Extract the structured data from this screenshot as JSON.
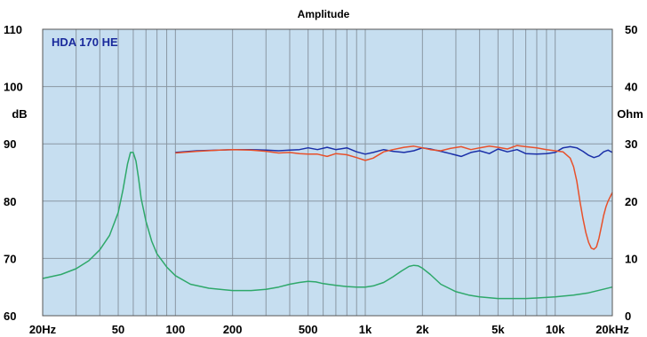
{
  "chart_data": {
    "type": "line",
    "title": "Amplitude",
    "annotation": "HDA 170 HE",
    "y_left_label": "dB",
    "y_right_label": "Ohm",
    "x_scale": "log",
    "xlim": [
      20,
      20000
    ],
    "ylim_left": [
      60,
      110
    ],
    "ylim_right": [
      0,
      50
    ],
    "plot_background": "#c6def0",
    "grid": true,
    "x_tick_values": [
      20,
      50,
      100,
      200,
      500,
      1000,
      2000,
      5000,
      10000,
      20000
    ],
    "x_tick_labels": [
      "20Hz",
      "50",
      "100",
      "200",
      "500",
      "1k",
      "2k",
      "5k",
      "10k",
      "20kHz"
    ],
    "y_left_ticks": [
      {
        "value": 110,
        "label": "110"
      },
      {
        "value": 100,
        "label": "100"
      },
      {
        "value": 90,
        "label": "90"
      },
      {
        "value": 80,
        "label": "80"
      },
      {
        "value": 70,
        "label": "70"
      },
      {
        "value": 60,
        "label": "60"
      }
    ],
    "y_right_ticks": [
      {
        "value": 50,
        "label": "50"
      },
      {
        "value": 40,
        "label": "40"
      },
      {
        "value": 30,
        "label": "30"
      },
      {
        "value": 20,
        "label": "20"
      },
      {
        "value": 10,
        "label": "10"
      },
      {
        "value": 0,
        "label": "0"
      }
    ],
    "series": [
      {
        "axis": "left",
        "color": "#1a2fa8",
        "x": [
          100,
          130,
          170,
          200,
          250,
          300,
          350,
          400,
          450,
          500,
          560,
          630,
          700,
          800,
          900,
          1000,
          1100,
          1250,
          1400,
          1600,
          1800,
          2000,
          2200,
          2500,
          2800,
          3200,
          3600,
          4000,
          4500,
          5000,
          5600,
          6300,
          7000,
          8000,
          9000,
          10000,
          11000,
          12000,
          13000,
          14000,
          15000,
          16000,
          17000,
          18000,
          19000,
          20000
        ],
        "y": [
          88.5,
          88.8,
          88.9,
          89.0,
          89.0,
          88.9,
          88.8,
          88.9,
          89.0,
          89.3,
          89.0,
          89.4,
          89.0,
          89.3,
          88.6,
          88.2,
          88.5,
          89.0,
          88.7,
          88.5,
          88.8,
          89.3,
          89.1,
          88.7,
          88.3,
          87.8,
          88.5,
          88.8,
          88.3,
          89.1,
          88.6,
          89.0,
          88.3,
          88.2,
          88.3,
          88.5,
          89.3,
          89.5,
          89.3,
          88.7,
          88.0,
          87.6,
          87.9,
          88.6,
          88.9,
          88.5
        ]
      },
      {
        "axis": "left",
        "color": "#e8502a",
        "x": [
          100,
          130,
          170,
          200,
          250,
          300,
          350,
          400,
          450,
          500,
          560,
          630,
          700,
          800,
          900,
          1000,
          1100,
          1250,
          1400,
          1600,
          1800,
          2000,
          2200,
          2500,
          2800,
          3200,
          3600,
          4000,
          4500,
          5000,
          5600,
          6300,
          7000,
          8000,
          9000,
          10000,
          11000,
          12000,
          12500,
          13000,
          13500,
          14000,
          14500,
          15000,
          15500,
          16000,
          16500,
          17000,
          17500,
          18000,
          18500,
          19000,
          20000
        ],
        "y": [
          88.4,
          88.7,
          88.9,
          89.0,
          88.9,
          88.7,
          88.4,
          88.5,
          88.3,
          88.2,
          88.2,
          87.8,
          88.3,
          88.1,
          87.6,
          87.1,
          87.5,
          88.6,
          89.0,
          89.4,
          89.6,
          89.3,
          89.0,
          88.8,
          89.2,
          89.5,
          89.0,
          89.3,
          89.6,
          89.4,
          89.1,
          89.7,
          89.5,
          89.3,
          89.0,
          88.8,
          88.6,
          87.5,
          86.0,
          83.5,
          80.0,
          77.0,
          74.5,
          72.8,
          71.8,
          71.6,
          72.0,
          73.5,
          75.5,
          77.5,
          79.0,
          80.0,
          81.5
        ]
      },
      {
        "axis": "right",
        "color": "#2ea86a",
        "x": [
          20,
          25,
          30,
          35,
          40,
          45,
          50,
          53,
          56,
          58,
          60,
          62,
          64,
          66,
          70,
          75,
          80,
          90,
          100,
          120,
          150,
          200,
          250,
          300,
          350,
          400,
          450,
          500,
          550,
          600,
          700,
          800,
          900,
          1000,
          1100,
          1250,
          1400,
          1550,
          1700,
          1800,
          1900,
          2000,
          2200,
          2500,
          3000,
          3500,
          4000,
          5000,
          6000,
          7000,
          8000,
          10000,
          12500,
          15000,
          20000
        ],
        "y": [
          6.5,
          7.2,
          8.2,
          9.6,
          11.5,
          14.0,
          18.0,
          22.0,
          26.5,
          28.5,
          28.5,
          27.0,
          24.0,
          20.5,
          16.5,
          13.0,
          10.8,
          8.5,
          7.0,
          5.5,
          4.8,
          4.4,
          4.4,
          4.6,
          5.0,
          5.5,
          5.8,
          6.0,
          5.9,
          5.6,
          5.3,
          5.1,
          5.0,
          5.0,
          5.2,
          5.8,
          6.8,
          7.8,
          8.6,
          8.8,
          8.7,
          8.3,
          7.2,
          5.5,
          4.2,
          3.6,
          3.3,
          3.0,
          3.0,
          3.0,
          3.1,
          3.3,
          3.6,
          4.0,
          5.0
        ]
      }
    ]
  }
}
